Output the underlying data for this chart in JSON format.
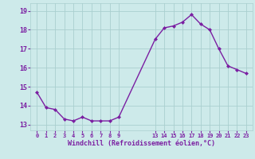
{
  "x": [
    0,
    1,
    2,
    3,
    4,
    5,
    6,
    7,
    8,
    9,
    13,
    14,
    15,
    16,
    17,
    18,
    19,
    20,
    21,
    22,
    23
  ],
  "y": [
    14.7,
    13.9,
    13.8,
    13.3,
    13.2,
    13.4,
    13.2,
    13.2,
    13.2,
    13.4,
    17.5,
    18.1,
    18.2,
    18.4,
    18.8,
    18.3,
    18.0,
    17.0,
    16.1,
    15.9,
    15.7
  ],
  "line_color": "#7b1fa2",
  "marker_color": "#7b1fa2",
  "bg_color": "#cdeaea",
  "grid_color": "#aacfcf",
  "tick_color": "#7b1fa2",
  "xlabel": "Windchill (Refroidissement éolien,°C)",
  "xlabel_color": "#7b1fa2",
  "ylabel_color": "#7b1fa2",
  "yticks": [
    13,
    14,
    15,
    16,
    17,
    18,
    19
  ],
  "xtick_labels": [
    "0",
    "1",
    "2",
    "3",
    "4",
    "5",
    "6",
    "7",
    "8",
    "9",
    "13",
    "14",
    "15",
    "16",
    "17",
    "18",
    "19",
    "20",
    "21",
    "22",
    "23"
  ],
  "ylim": [
    12.7,
    19.4
  ],
  "xlim": [
    -0.7,
    23.7
  ]
}
